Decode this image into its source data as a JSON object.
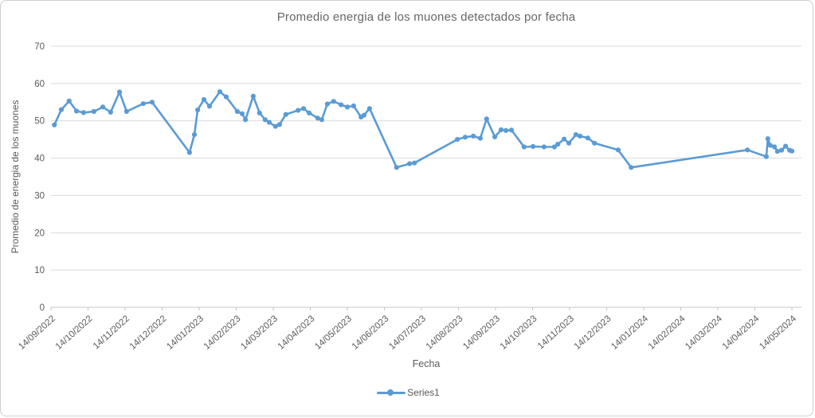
{
  "window": {
    "background": "#ffffff",
    "border_color": "#cfcfcf"
  },
  "chart_data": {
    "type": "line",
    "title": "Promedio energia de los muones detectados por fecha",
    "xlabel": "Fecha",
    "ylabel": "Promedio de energia de los muones",
    "legend_position": "bottom",
    "legend_entries": [
      "Series1"
    ],
    "grid": true,
    "colors": {
      "line": "#5B9BD5",
      "marker": "#5B9BD5",
      "grid": "#d9d9d9",
      "axis": "#c6c6c6",
      "text": "#666666",
      "tick_text": "#595959"
    },
    "ylim": [
      0,
      70
    ],
    "y_ticks": [
      70,
      60,
      50,
      40,
      30,
      20,
      10,
      0
    ],
    "x_tick_labels": [
      "14/09/2022",
      "14/10/2022",
      "14/11/2022",
      "14/12/2022",
      "14/01/2023",
      "14/02/2023",
      "14/03/2023",
      "14/04/2023",
      "14/05/2023",
      "14/06/2023",
      "14/07/2023",
      "14/08/2023",
      "14/09/2023",
      "14/10/2023",
      "14/11/2023",
      "14/12/2023",
      "14/01/2024",
      "14/02/2024",
      "14/03/2024",
      "14/04/2024",
      "14/05/2024"
    ],
    "x_unit": "months_since_first_tick",
    "series": [
      {
        "name": "Series1",
        "points": [
          [
            0.09,
            48.9
          ],
          [
            0.28,
            53
          ],
          [
            0.49,
            55.3
          ],
          [
            0.69,
            52.6
          ],
          [
            0.88,
            52.2
          ],
          [
            1.16,
            52.5
          ],
          [
            1.4,
            53.7
          ],
          [
            1.61,
            52.3
          ],
          [
            1.85,
            57.7
          ],
          [
            2.04,
            52.5
          ],
          [
            2.49,
            54.6
          ],
          [
            2.73,
            55
          ],
          [
            3.74,
            41.5
          ],
          [
            3.87,
            46.3
          ],
          [
            3.96,
            52.9
          ],
          [
            4.13,
            55.7
          ],
          [
            4.28,
            53.9
          ],
          [
            4.56,
            57.8
          ],
          [
            4.73,
            56.4
          ],
          [
            5.03,
            52.5
          ],
          [
            5.16,
            51.9
          ],
          [
            5.25,
            50.3
          ],
          [
            5.46,
            56.6
          ],
          [
            5.63,
            52.1
          ],
          [
            5.78,
            50.3
          ],
          [
            5.89,
            49.6
          ],
          [
            6.06,
            48.5
          ],
          [
            6.17,
            49
          ],
          [
            6.34,
            51.7
          ],
          [
            6.67,
            52.8
          ],
          [
            6.82,
            53.3
          ],
          [
            6.97,
            52.1
          ],
          [
            7.2,
            50.7
          ],
          [
            7.31,
            50.3
          ],
          [
            7.46,
            54.5
          ],
          [
            7.63,
            55.2
          ],
          [
            7.83,
            54.3
          ],
          [
            8,
            53.7
          ],
          [
            8.17,
            54
          ],
          [
            8.37,
            51
          ],
          [
            8.45,
            51.5
          ],
          [
            8.6,
            53.3
          ],
          [
            9.33,
            37.5
          ],
          [
            9.68,
            38.5
          ],
          [
            9.81,
            38.7
          ],
          [
            10.97,
            45
          ],
          [
            11.18,
            45.6
          ],
          [
            11.4,
            45.9
          ],
          [
            11.59,
            45.3
          ],
          [
            11.76,
            50.5
          ],
          [
            11.98,
            45.7
          ],
          [
            12.15,
            47.6
          ],
          [
            12.28,
            47.4
          ],
          [
            12.43,
            47.5
          ],
          [
            12.77,
            43
          ],
          [
            13.01,
            43.1
          ],
          [
            13.31,
            43
          ],
          [
            13.59,
            43
          ],
          [
            13.68,
            43.7
          ],
          [
            13.85,
            45.1
          ],
          [
            13.98,
            44
          ],
          [
            14.17,
            46.3
          ],
          [
            14.28,
            45.9
          ],
          [
            14.49,
            45.4
          ],
          [
            14.67,
            44
          ],
          [
            15.31,
            42.2
          ],
          [
            15.66,
            37.5
          ],
          [
            18.8,
            42.2
          ],
          [
            19.31,
            40.4
          ],
          [
            19.35,
            45.2
          ],
          [
            19.42,
            43.4
          ],
          [
            19.53,
            43
          ],
          [
            19.61,
            41.8
          ],
          [
            19.72,
            42.1
          ],
          [
            19.83,
            43.2
          ],
          [
            19.94,
            42.1
          ],
          [
            20,
            41.9
          ]
        ]
      }
    ]
  }
}
